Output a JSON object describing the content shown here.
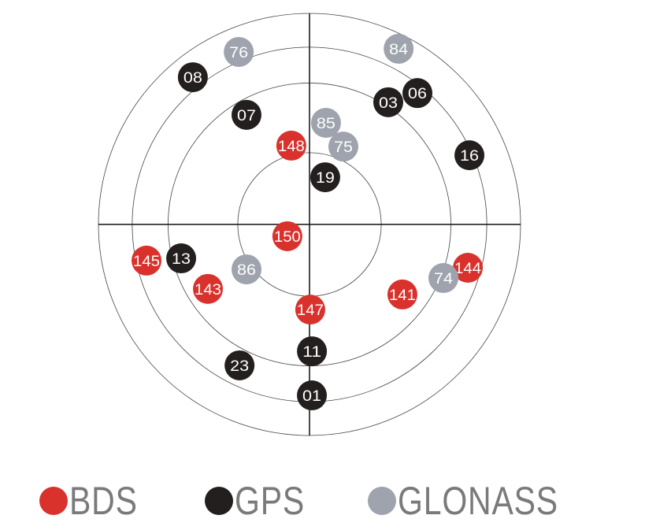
{
  "chart_data": {
    "type": "scatter",
    "subtype": "polar skyplot",
    "coordinates": "azimuth (deg, clockwise from north) / elevation (deg)",
    "grid": true,
    "rings": 4,
    "legend_placement": "bottom",
    "colors": {
      "BDS": "#d9322d",
      "GPS": "#231f1e",
      "GLONASS": "#9ea3ad"
    },
    "series": [
      {
        "name": "BDS",
        "points": [
          {
            "id": "148",
            "az": 347,
            "el": 55.5
          },
          {
            "id": "150",
            "az": 242,
            "el": 79.3
          },
          {
            "id": "145",
            "az": 257.5,
            "el": 18.8
          },
          {
            "id": "143",
            "az": 237.6,
            "el": 38.7
          },
          {
            "id": "144",
            "az": 105.3,
            "el": 20.0
          },
          {
            "id": "141",
            "az": 127.0,
            "el": 40.4
          },
          {
            "id": "147",
            "az": 179.5,
            "el": 53.7
          }
        ]
      },
      {
        "name": "GPS",
        "points": [
          {
            "id": "08",
            "az": 321.6,
            "el": 9.9
          },
          {
            "id": "06",
            "az": 39.4,
            "el": 17.5
          },
          {
            "id": "03",
            "az": 32.8,
            "el": 28.0
          },
          {
            "id": "07",
            "az": 330.1,
            "el": 36.1
          },
          {
            "id": "16",
            "az": 66.6,
            "el": 15.7
          },
          {
            "id": "19",
            "az": 18.4,
            "el": 68.8
          },
          {
            "id": "13",
            "az": 255.2,
            "el": 33.4
          },
          {
            "id": "11",
            "az": 178.9,
            "el": 35.9
          },
          {
            "id": "23",
            "az": 206.4,
            "el": 22.9
          },
          {
            "id": "01",
            "az": 179.2,
            "el": 17.1
          }
        ]
      },
      {
        "name": "GLONASS",
        "points": [
          {
            "id": "76",
            "az": 337.7,
            "el": 10.5
          },
          {
            "id": "84",
            "az": 26.9,
            "el": 6.0
          },
          {
            "id": "85",
            "az": 9.2,
            "el": 46.1
          },
          {
            "id": "75",
            "az": 23.5,
            "el": 53.8
          },
          {
            "id": "86",
            "az": 234.5,
            "el": 57.0
          },
          {
            "id": "74",
            "az": 111.8,
            "el": 28.5
          }
        ]
      }
    ]
  },
  "legend": [
    {
      "label": "BDS",
      "color": "#d9322d"
    },
    {
      "label": "GPS",
      "color": "#231f1e"
    },
    {
      "label": "GLONASS",
      "color": "#9ea3ad"
    }
  ]
}
